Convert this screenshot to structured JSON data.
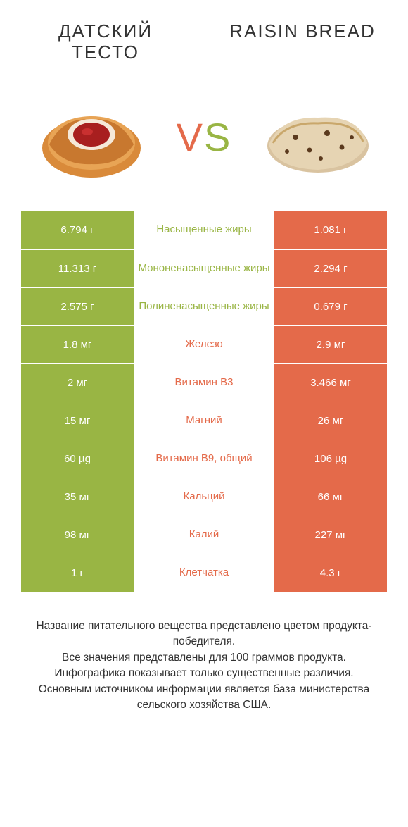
{
  "colors": {
    "green": "#99b544",
    "orange": "#e46a4a",
    "white": "#ffffff",
    "text": "#333333"
  },
  "header": {
    "left_title": "ДАТСКИЙ ТЕСТО",
    "right_title": "RAISIN BREAD",
    "vs_v": "V",
    "vs_s": "S"
  },
  "legend_left_color": "#99b544",
  "legend_right_color": "#e46a4a",
  "rows": [
    {
      "left": "6.794 г",
      "mid": "Насыщенные жиры",
      "right": "1.081 г",
      "winner": "left"
    },
    {
      "left": "11.313 г",
      "mid": "Мононенасыщенные жиры",
      "right": "2.294 г",
      "winner": "left"
    },
    {
      "left": "2.575 г",
      "mid": "Полиненасыщенные жиры",
      "right": "0.679 г",
      "winner": "left"
    },
    {
      "left": "1.8 мг",
      "mid": "Железо",
      "right": "2.9 мг",
      "winner": "right"
    },
    {
      "left": "2 мг",
      "mid": "Витамин B3",
      "right": "3.466 мг",
      "winner": "right"
    },
    {
      "left": "15 мг",
      "mid": "Магний",
      "right": "26 мг",
      "winner": "right"
    },
    {
      "left": "60 µg",
      "mid": "Витамин B9, общий",
      "right": "106 µg",
      "winner": "right"
    },
    {
      "left": "35 мг",
      "mid": "Кальций",
      "right": "66 мг",
      "winner": "right"
    },
    {
      "left": "98 мг",
      "mid": "Калий",
      "right": "227 мг",
      "winner": "right"
    },
    {
      "left": "1 г",
      "mid": "Клетчатка",
      "right": "4.3 г",
      "winner": "right"
    }
  ],
  "footer": {
    "line1": "Название питательного вещества представлено цветом продукта-победителя.",
    "line2": "Все значения представлены для 100 граммов продукта.",
    "line3": "Инфографика показывает только существенные различия.",
    "line4": "Основным источником информации является база министерства сельского хозяйства США."
  }
}
